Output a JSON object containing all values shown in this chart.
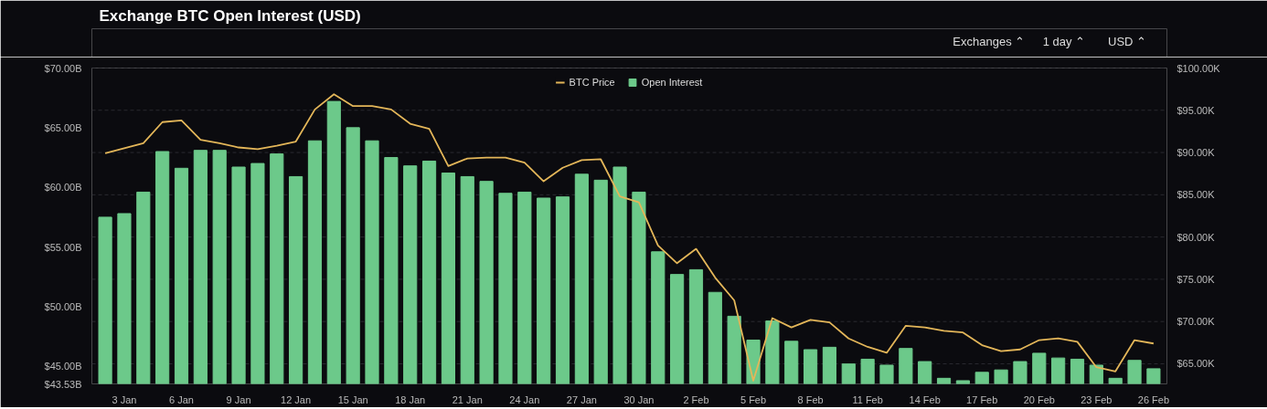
{
  "chart_data": {
    "type": "bar",
    "title": "Exchange BTC Open Interest (USD)",
    "annotations": [
      "Exchanges ⌃",
      "1 day ⌃",
      "USD ⌃"
    ],
    "categories": [
      null,
      "3 Jan",
      null,
      null,
      "6 Jan",
      null,
      null,
      "9 Jan",
      null,
      null,
      "12 Jan",
      null,
      null,
      "15 Jan",
      null,
      null,
      "18 Jan",
      null,
      null,
      "21 Jan",
      null,
      null,
      "24 Jan",
      null,
      null,
      "27 Jan",
      null,
      null,
      "30 Jan",
      null,
      null,
      "2 Feb",
      null,
      null,
      "5 Feb",
      null,
      null,
      "8 Feb",
      null,
      null,
      "11 Feb",
      null,
      null,
      "14 Feb",
      null,
      null,
      "17 Feb",
      null,
      null,
      "20 Feb",
      null,
      null,
      "23 Feb",
      null,
      null,
      "26 Feb"
    ],
    "series": [
      {
        "name": "BTC Price",
        "type": "line",
        "axis": "y2",
        "color": "#e3b659",
        "values": [
          89.9,
          90.5,
          91.1,
          93.6,
          93.8,
          91.5,
          91.1,
          90.6,
          90.4,
          90.8,
          91.3,
          95.1,
          96.9,
          95.5,
          95.5,
          95.1,
          93.4,
          92.8,
          88.4,
          89.3,
          89.4,
          89.4,
          88.8,
          86.6,
          88.2,
          89.1,
          89.2,
          84.8,
          84.1,
          79.0,
          76.9,
          78.6,
          75.2,
          72.5,
          63.0,
          70.4,
          69.3,
          70.2,
          69.9,
          68.0,
          67.0,
          66.3,
          69.5,
          69.3,
          68.9,
          68.7,
          67.2,
          66.5,
          66.7,
          67.8,
          68.0,
          67.6,
          64.6,
          64.1,
          67.8,
          67.4
        ]
      },
      {
        "name": "Open Interest",
        "color": "#6cc98a",
        "values": [
          57.5,
          57.8,
          59.6,
          63.0,
          61.6,
          63.1,
          63.1,
          61.7,
          62.0,
          62.8,
          60.9,
          63.9,
          67.2,
          65.0,
          63.9,
          62.5,
          61.8,
          62.2,
          61.2,
          60.9,
          60.5,
          59.5,
          59.6,
          59.1,
          59.2,
          61.1,
          60.6,
          61.7,
          59.6,
          54.6,
          52.7,
          53.1,
          51.2,
          49.2,
          47.2,
          48.8,
          47.1,
          46.4,
          46.6,
          45.2,
          45.6,
          45.1,
          46.5,
          45.4,
          44.0,
          43.8,
          44.5,
          44.7,
          45.4,
          46.1,
          45.7,
          45.6,
          45.1,
          44.0,
          45.5,
          44.8
        ]
      }
    ],
    "ylim": [
      43.53,
      70
    ],
    "yticks": [
      {
        "value": 43.53,
        "label": "$43.53B"
      },
      {
        "value": 45,
        "label": "$45.00B"
      },
      {
        "value": 50,
        "label": "$50.00B"
      },
      {
        "value": 55,
        "label": "$55.00B"
      },
      {
        "value": 60,
        "label": "$60.00B"
      },
      {
        "value": 65,
        "label": "$65.00B"
      },
      {
        "value": 70,
        "label": "$70.00B"
      }
    ],
    "y2lim": [
      62.62,
      100
    ],
    "y2ticks": [
      {
        "value": 65,
        "label": "$65.00K"
      },
      {
        "value": 70,
        "label": "$70.00K"
      },
      {
        "value": 75,
        "label": "$75.00K"
      },
      {
        "value": 80,
        "label": "$80.00K"
      },
      {
        "value": 85,
        "label": "$85.00K"
      },
      {
        "value": 90,
        "label": "$90.00K"
      },
      {
        "value": 95,
        "label": "$95.00K"
      },
      {
        "value": 100,
        "label": "$100.00K"
      }
    ],
    "grid": "y",
    "legend": "top",
    "line_style": "solid",
    "marker": "none"
  }
}
